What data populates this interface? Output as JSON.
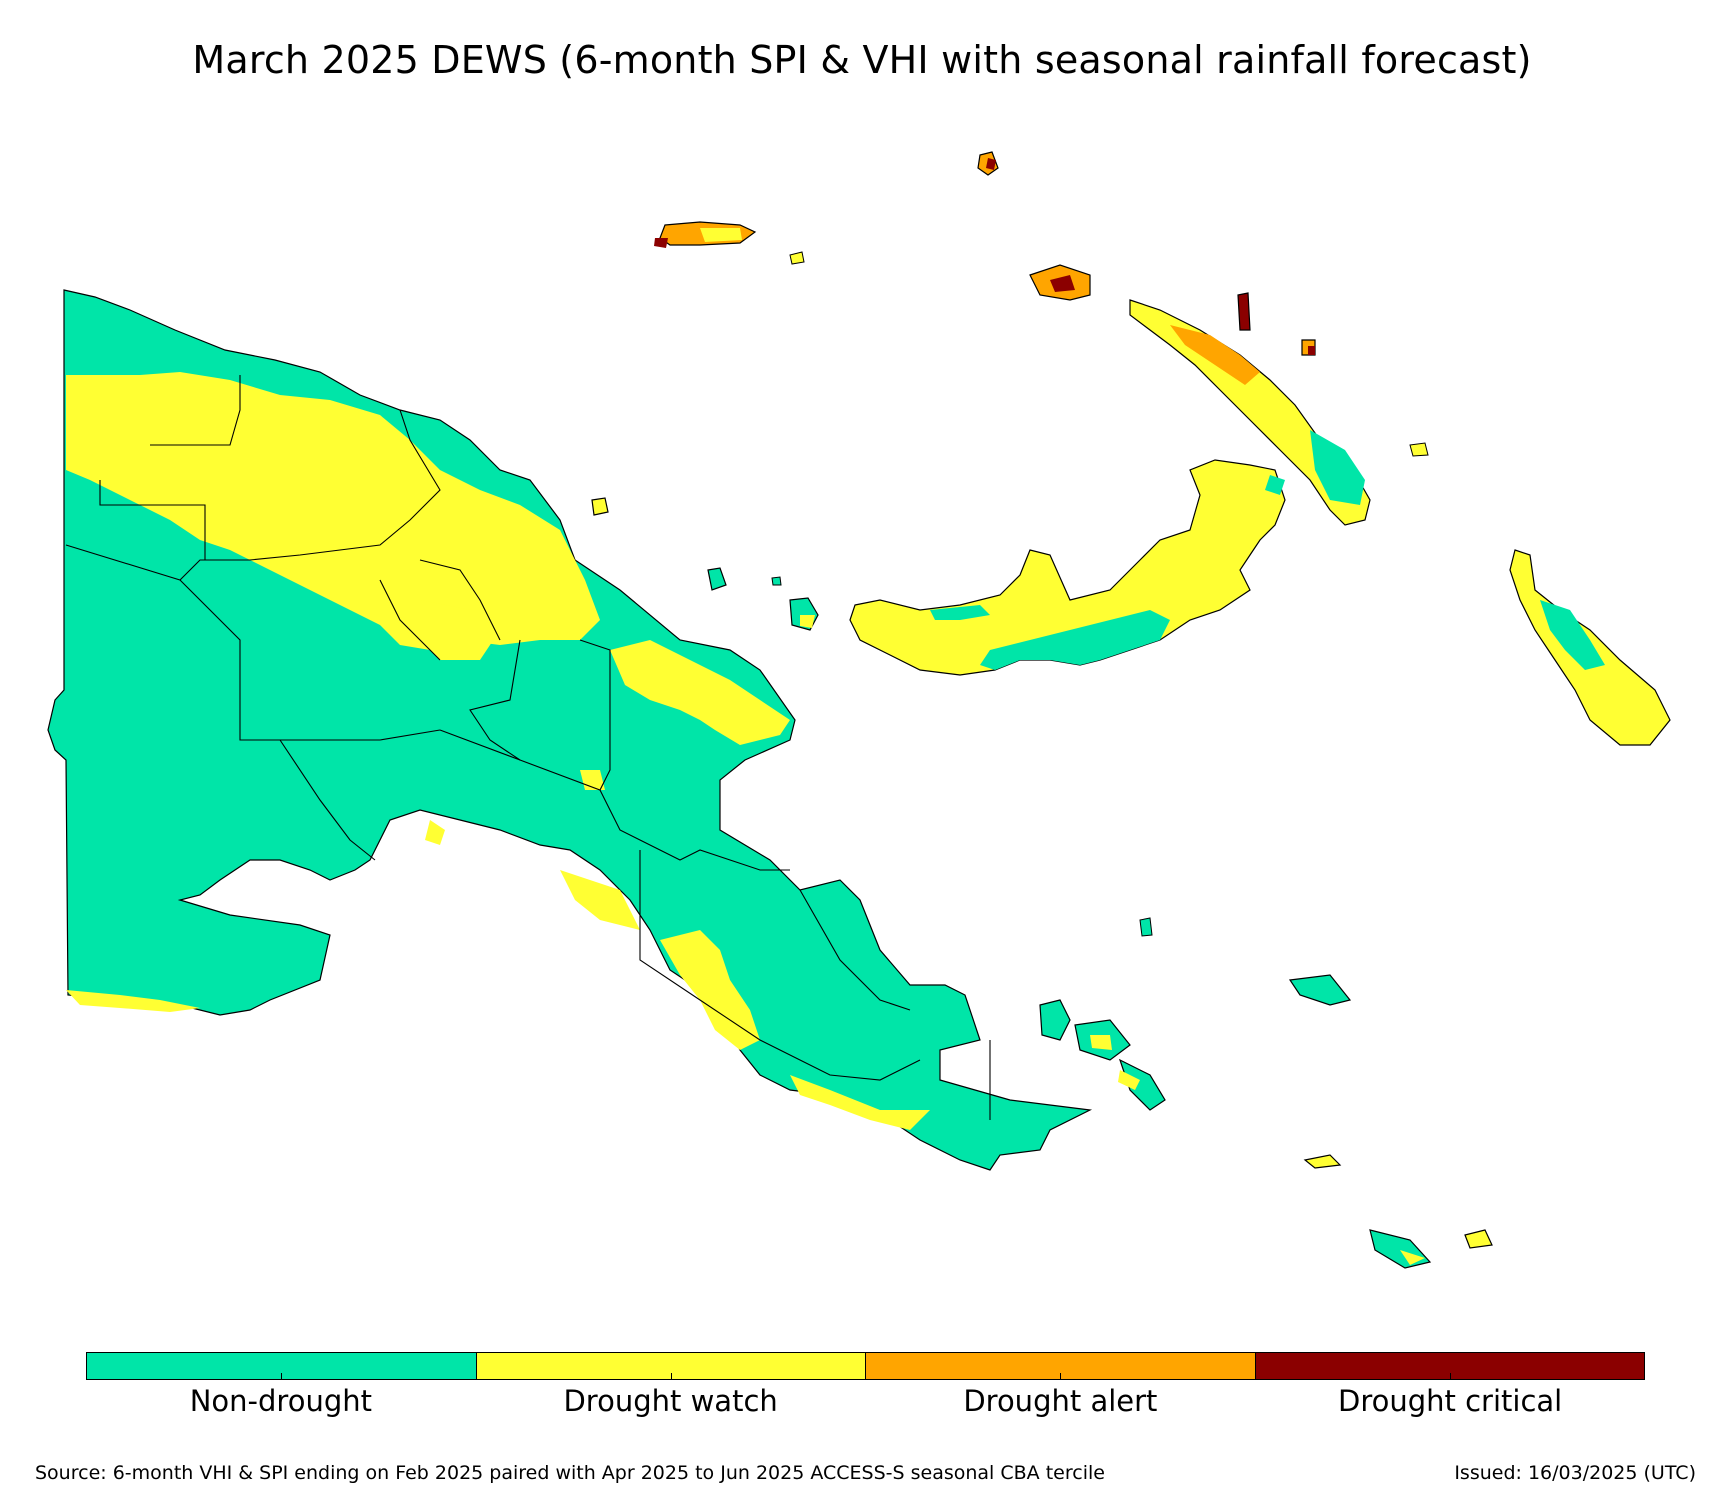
{
  "title": "March 2025 DEWS (6-month SPI & VHI with seasonal rainfall forecast)",
  "colors": {
    "non_drought": "#00E5A8",
    "drought_watch": "#FFFF33",
    "drought_alert": "#FFA500",
    "drought_critical": "#8B0000",
    "boundary": "#000000"
  },
  "legend": [
    {
      "label": "Non-drought",
      "color": "#00E5A8"
    },
    {
      "label": "Drought watch",
      "color": "#FFFF33"
    },
    {
      "label": "Drought alert",
      "color": "#FFA500"
    },
    {
      "label": "Drought critical",
      "color": "#8B0000"
    }
  ],
  "source": "Source: 6-month VHI & SPI ending on Feb 2025 paired with Apr 2025 to Jun 2025 ACCESS-S seasonal CBA tercile",
  "issued": "Issued: 16/03/2025 (UTC)"
}
